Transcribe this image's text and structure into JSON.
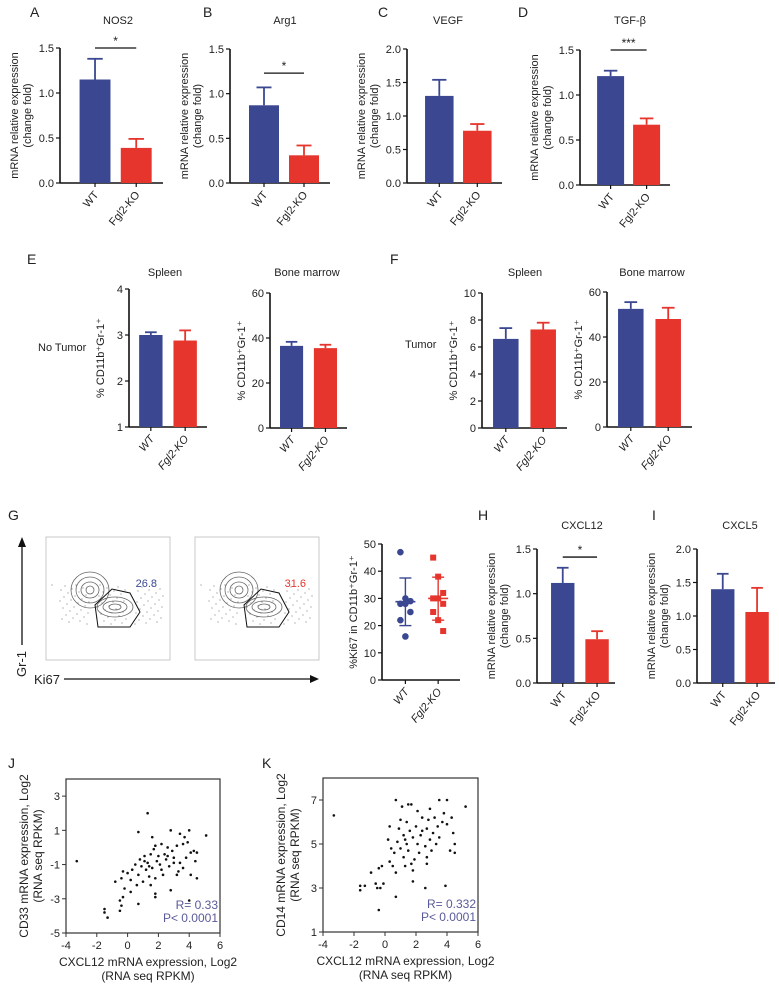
{
  "colors": {
    "WT": "#3b4891",
    "Fgl2-KO": "#e5352d",
    "annotation": "#5a5a9a",
    "axis": "#111111"
  },
  "chart_data": [
    {
      "id": "A",
      "panel_letter": "A",
      "type": "bar",
      "title": "NOS2",
      "ylabel": [
        "mRNA relative expression",
        "(change fold)"
      ],
      "categories": [
        "WT",
        "Fgl2-KO"
      ],
      "values": [
        1.15,
        0.39
      ],
      "error_upper": [
        1.38,
        0.49
      ],
      "ylim": [
        0,
        1.5
      ],
      "yticks": [
        "0.0",
        "0.5",
        "1.0",
        "1.5"
      ],
      "significance": "*"
    },
    {
      "id": "B",
      "panel_letter": "B",
      "type": "bar",
      "title": "Arg1",
      "ylabel": [
        "mRNA relative expression",
        "(change fold)"
      ],
      "categories": [
        "WT",
        "Fgl2-KO"
      ],
      "values": [
        0.87,
        0.31
      ],
      "error_upper": [
        1.07,
        0.42
      ],
      "ylim": [
        0,
        1.5
      ],
      "yticks": [
        "0.0",
        "0.5",
        "1.0",
        "1.5"
      ],
      "significance": "*"
    },
    {
      "id": "C",
      "panel_letter": "C",
      "type": "bar",
      "title": "VEGF",
      "ylabel": [
        "mRNA relative expression",
        "(change fold)"
      ],
      "categories": [
        "WT",
        "Fgl2-KO"
      ],
      "values": [
        1.3,
        0.78
      ],
      "error_upper": [
        1.54,
        0.88
      ],
      "ylim": [
        0,
        2.0
      ],
      "yticks": [
        "0.0",
        "0.5",
        "1.0",
        "1.5",
        "2.0"
      ],
      "significance": ""
    },
    {
      "id": "D",
      "panel_letter": "D",
      "type": "bar",
      "title": "TGF-β",
      "ylabel": [
        "mRNA relative expression",
        "(change fold)"
      ],
      "categories": [
        "WT",
        "Fgl2-KO"
      ],
      "values": [
        1.21,
        0.67
      ],
      "error_upper": [
        1.27,
        0.74
      ],
      "ylim": [
        0,
        1.5
      ],
      "yticks": [
        "0.0",
        "0.5",
        "1.0",
        "1.5"
      ],
      "significance": "***"
    },
    {
      "id": "E1",
      "panel_letter": "E",
      "row_label": "No Tumor",
      "type": "bar",
      "title": "Spleen",
      "ylabel": [
        "% CD11b⁺Gr-1⁺"
      ],
      "categories": [
        "WT",
        "Fgl2-KO"
      ],
      "values": [
        3.0,
        2.88
      ],
      "error_upper": [
        3.06,
        3.1
      ],
      "ylim": [
        1,
        4
      ],
      "yticks": [
        "1",
        "2",
        "3",
        "4"
      ],
      "significance": ""
    },
    {
      "id": "E2",
      "panel_letter": "",
      "type": "bar",
      "title": "Bone marrow",
      "ylabel": [
        "% CD11b⁺Gr-1⁺"
      ],
      "categories": [
        "WT",
        "Fgl2-KO"
      ],
      "values": [
        36.5,
        35.5
      ],
      "error_upper": [
        38.3,
        37.0
      ],
      "ylim": [
        0,
        60
      ],
      "yticks": [
        "0",
        "20",
        "40",
        "60"
      ],
      "significance": ""
    },
    {
      "id": "F1",
      "panel_letter": "F",
      "row_label": "Tumor",
      "type": "bar",
      "title": "Spleen",
      "ylabel": [
        "% CD11b⁺Gr-1⁺"
      ],
      "categories": [
        "WT",
        "Fgl2-KO"
      ],
      "values": [
        6.6,
        7.3
      ],
      "error_upper": [
        7.4,
        7.8
      ],
      "ylim": [
        0,
        10
      ],
      "yticks": [
        "0",
        "2",
        "4",
        "6",
        "8",
        "10"
      ],
      "significance": ""
    },
    {
      "id": "F2",
      "panel_letter": "",
      "type": "bar",
      "title": "Bone marrow",
      "ylabel": [
        "% CD11b⁺Gr-1⁺"
      ],
      "categories": [
        "WT",
        "Fgl2-KO"
      ],
      "values": [
        52.5,
        48.0
      ],
      "error_upper": [
        55.5,
        53.0
      ],
      "ylim": [
        0,
        60
      ],
      "yticks": [
        "0",
        "20",
        "40",
        "60"
      ],
      "significance": ""
    },
    {
      "id": "G",
      "panel_letter": "G",
      "type": "scatter",
      "title": "",
      "flow": {
        "y_axis": "Gr-1",
        "x_axis": "Ki67",
        "gate_values": [
          "26.8",
          "31.6"
        ]
      },
      "ylabel": [
        "%Ki67 in CD11b⁺Gr-1⁺"
      ],
      "categories": [
        "WT",
        "Fgl2-KO"
      ],
      "points": [
        [
          47,
          30,
          29,
          28,
          28,
          25,
          22,
          16
        ],
        [
          45,
          38,
          32,
          30,
          30,
          28,
          25,
          22,
          18
        ]
      ],
      "mean": [
        28.8,
        30.0
      ],
      "sd": [
        [
          20,
          37.5
        ],
        [
          22,
          37.8
        ]
      ],
      "ylim": [
        0,
        50
      ],
      "yticks": [
        "0",
        "10",
        "20",
        "30",
        "40",
        "50"
      ]
    },
    {
      "id": "H",
      "panel_letter": "H",
      "type": "bar",
      "title": "CXCL12",
      "ylabel": [
        "mRNA relative expression",
        "(change fold)"
      ],
      "categories": [
        "WT",
        "Fgl2-KO"
      ],
      "values": [
        1.12,
        0.49
      ],
      "error_upper": [
        1.29,
        0.58
      ],
      "ylim": [
        0,
        1.5
      ],
      "yticks": [
        "0.0",
        "0.5",
        "1.0",
        "1.5"
      ],
      "significance": "*"
    },
    {
      "id": "I",
      "panel_letter": "I",
      "type": "bar",
      "title": "CXCL5",
      "ylabel": [
        "mRNA relative expression",
        "(change fold)"
      ],
      "categories": [
        "WT",
        "Fgl2-KO"
      ],
      "values": [
        1.4,
        1.06
      ],
      "error_upper": [
        1.63,
        1.42
      ],
      "ylim": [
        0,
        2.0
      ],
      "yticks": [
        "0.0",
        "0.5",
        "1.0",
        "1.5",
        "2.0"
      ],
      "significance": ""
    },
    {
      "id": "J",
      "panel_letter": "J",
      "type": "scatter",
      "xlabel": [
        "CXCL12 mRNA expression, Log2",
        "(RNA seq RPKM)"
      ],
      "ylabel": [
        "CD33 mRNA expression, Log2",
        "(RNA seq RPKM)"
      ],
      "xlim": [
        -4,
        6
      ],
      "ylim": [
        -5,
        4
      ],
      "xticks": [
        "-4",
        "-2",
        "0",
        "2",
        "4",
        "6"
      ],
      "yticks": [
        "-5",
        "-3",
        "-1",
        "1",
        "3"
      ],
      "stats": [
        "R= 0.33",
        "P< 0.0001"
      ],
      "points": [
        [
          -3.3,
          -0.8
        ],
        [
          1.3,
          2
        ],
        [
          0.7,
          0.9
        ],
        [
          2.8,
          1
        ],
        [
          4,
          1
        ],
        [
          5.1,
          0.7
        ],
        [
          1.6,
          0.6
        ],
        [
          3.7,
          0.6
        ],
        [
          3.4,
          0.8
        ],
        [
          2.2,
          0.2
        ],
        [
          1.8,
          0.1
        ],
        [
          1.7,
          -0.1
        ],
        [
          2.6,
          0
        ],
        [
          3.2,
          0.1
        ],
        [
          3.6,
          0.2
        ],
        [
          3.9,
          0.3
        ],
        [
          4.1,
          -0.3
        ],
        [
          4.3,
          -0.2
        ],
        [
          4.5,
          -0.3
        ],
        [
          2.9,
          -0.2
        ],
        [
          2.4,
          -0.4
        ],
        [
          2,
          -0.5
        ],
        [
          1.5,
          -0.4
        ],
        [
          1.1,
          -0.5
        ],
        [
          0.8,
          -0.7
        ],
        [
          1.3,
          -0.9
        ],
        [
          1.9,
          -0.8
        ],
        [
          2.5,
          -0.7
        ],
        [
          3,
          -0.6
        ],
        [
          3.4,
          -0.9
        ],
        [
          3.8,
          -0.6
        ],
        [
          4.4,
          -0.8
        ],
        [
          0.5,
          -1
        ],
        [
          0.9,
          -1.1
        ],
        [
          1.6,
          -1.2
        ],
        [
          2.1,
          -1
        ],
        [
          2.7,
          -1.1
        ],
        [
          3.3,
          -1.4
        ],
        [
          3.6,
          -1.2
        ],
        [
          1.2,
          -1.3
        ],
        [
          0.3,
          -1.3
        ],
        [
          0,
          -1.5
        ],
        [
          -0.3,
          -1.4
        ],
        [
          -0.4,
          -1.8
        ],
        [
          -0.8,
          -2
        ],
        [
          0.2,
          -1.9
        ],
        [
          0.7,
          -1.6
        ],
        [
          1.4,
          -1.7
        ],
        [
          1.8,
          -1.8
        ],
        [
          2.3,
          -1.6
        ],
        [
          3.2,
          -1.6
        ],
        [
          4.1,
          -1.6
        ],
        [
          4.5,
          -1.8
        ],
        [
          1,
          -2
        ],
        [
          1.5,
          -2.2
        ],
        [
          0.6,
          -2.2
        ],
        [
          -0.2,
          -2.4
        ],
        [
          0.2,
          -2.6
        ],
        [
          -0.3,
          -2.9
        ],
        [
          1.8,
          -2.7
        ],
        [
          1.8,
          -2.9
        ],
        [
          2.8,
          -2.5
        ],
        [
          -0.5,
          -3.1
        ],
        [
          -0.4,
          -3.4
        ],
        [
          0.7,
          -3.3
        ],
        [
          -1.5,
          -3.6
        ],
        [
          -1.5,
          -3.8
        ],
        [
          -1.3,
          -4.1
        ],
        [
          -0.5,
          -3.7
        ],
        [
          4,
          -3.1
        ],
        [
          1.1,
          -0.8
        ],
        [
          2.2,
          -1.3
        ],
        [
          2.6,
          -0.5
        ],
        [
          3,
          -0.9
        ],
        [
          1.4,
          -1.1
        ]
      ]
    },
    {
      "id": "K",
      "panel_letter": "K",
      "type": "scatter",
      "xlabel": [
        "CXCL12 mRNA expression, Log2",
        "(RNA seq RPKM)"
      ],
      "ylabel": [
        "CD14 mRNA expression, Log2",
        "(RNA seq RPKM)"
      ],
      "xlim": [
        -4,
        6
      ],
      "ylim": [
        1,
        8
      ],
      "xticks": [
        "-4",
        "-2",
        "0",
        "2",
        "4",
        "6"
      ],
      "yticks": [
        "1",
        "3",
        "5",
        "7"
      ],
      "stats": [
        "R= 0.332",
        "P< 0.0001"
      ],
      "points": [
        [
          -3.3,
          6.3
        ],
        [
          0.7,
          7
        ],
        [
          3.5,
          7
        ],
        [
          4,
          7
        ],
        [
          5.2,
          6.7
        ],
        [
          1.5,
          6.8
        ],
        [
          1.7,
          6.8
        ],
        [
          1.1,
          6.7
        ],
        [
          2.1,
          6.5
        ],
        [
          2.9,
          6.6
        ],
        [
          3.8,
          6.4
        ],
        [
          4.3,
          6.2
        ],
        [
          1,
          6.1
        ],
        [
          1.4,
          6
        ],
        [
          2.4,
          6.2
        ],
        [
          3.2,
          6.2
        ],
        [
          3.7,
          6
        ],
        [
          0.3,
          5.8
        ],
        [
          0.9,
          5.7
        ],
        [
          1.6,
          5.6
        ],
        [
          2,
          5.8
        ],
        [
          2.7,
          5.7
        ],
        [
          3.1,
          5.5
        ],
        [
          4,
          5.9
        ],
        [
          4.4,
          5.5
        ],
        [
          1.2,
          5.4
        ],
        [
          1.8,
          5.3
        ],
        [
          2.3,
          5.4
        ],
        [
          2.9,
          5.2
        ],
        [
          3.5,
          5.3
        ],
        [
          0.2,
          5.2
        ],
        [
          0.8,
          5.1
        ],
        [
          1.4,
          5
        ],
        [
          2.1,
          5
        ],
        [
          2.6,
          4.9
        ],
        [
          3.3,
          5
        ],
        [
          4.5,
          5
        ],
        [
          0.4,
          4.8
        ],
        [
          1,
          4.8
        ],
        [
          1.5,
          4.7
        ],
        [
          2.2,
          4.6
        ],
        [
          3,
          4.7
        ],
        [
          4.2,
          4.7
        ],
        [
          4.5,
          4.6
        ],
        [
          0.6,
          4.6
        ],
        [
          1.2,
          4.4
        ],
        [
          1.9,
          4.3
        ],
        [
          2.7,
          4.4
        ],
        [
          0.3,
          4.2
        ],
        [
          1.7,
          4.1
        ],
        [
          2.7,
          4.1
        ],
        [
          -0.2,
          4
        ],
        [
          0.5,
          4
        ],
        [
          1.3,
          4
        ],
        [
          1.8,
          3.8
        ],
        [
          -0.4,
          3.9
        ],
        [
          -0.9,
          3.7
        ],
        [
          0.7,
          3.7
        ],
        [
          1.8,
          3.3
        ],
        [
          -1.6,
          3.1
        ],
        [
          -1.6,
          2.9
        ],
        [
          -1.3,
          3.1
        ],
        [
          -0.6,
          3.2
        ],
        [
          -0.5,
          3
        ],
        [
          -0.3,
          3
        ],
        [
          -0.1,
          3.2
        ],
        [
          2.6,
          3
        ],
        [
          3.9,
          3.1
        ],
        [
          0.7,
          2.6
        ],
        [
          -0.4,
          2
        ],
        [
          2.4,
          5.6
        ],
        [
          3.4,
          5.8
        ],
        [
          1.3,
          5.2
        ],
        [
          2.8,
          6.1
        ]
      ]
    }
  ]
}
